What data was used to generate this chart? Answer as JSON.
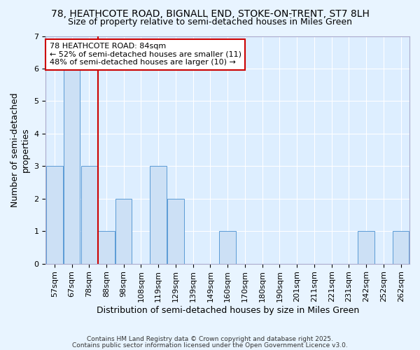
{
  "title1": "78, HEATHCOTE ROAD, BIGNALL END, STOKE-ON-TRENT, ST7 8LH",
  "title2": "Size of property relative to semi-detached houses in Miles Green",
  "xlabel": "Distribution of semi-detached houses by size in Miles Green",
  "ylabel": "Number of semi-detached\nproperties",
  "bins": [
    "57sqm",
    "67sqm",
    "78sqm",
    "88sqm",
    "98sqm",
    "108sqm",
    "119sqm",
    "129sqm",
    "139sqm",
    "149sqm",
    "160sqm",
    "170sqm",
    "180sqm",
    "190sqm",
    "201sqm",
    "211sqm",
    "221sqm",
    "231sqm",
    "242sqm",
    "252sqm",
    "262sqm"
  ],
  "values": [
    3,
    6,
    3,
    1,
    2,
    0,
    3,
    2,
    0,
    0,
    1,
    0,
    0,
    0,
    0,
    0,
    0,
    0,
    1,
    0,
    1
  ],
  "bar_color": "#cce0f5",
  "bar_edge_color": "#5b9bd5",
  "vline_index": 2.5,
  "vline_color": "#cc0000",
  "annotation_line1": "78 HEATHCOTE ROAD: 84sqm",
  "annotation_line2": "← 52% of semi-detached houses are smaller (11)",
  "annotation_line3": "48% of semi-detached houses are larger (10) →",
  "annotation_box_color": "#ffffff",
  "annotation_box_edge": "#cc0000",
  "background_color": "#e8f4ff",
  "plot_bg_color": "#ddeeff",
  "footer1": "Contains HM Land Registry data © Crown copyright and database right 2025.",
  "footer2": "Contains public sector information licensed under the Open Government Licence v3.0.",
  "ylim": [
    0,
    7
  ],
  "yticks": [
    0,
    1,
    2,
    3,
    4,
    5,
    6,
    7
  ],
  "title_fontsize": 10,
  "subtitle_fontsize": 9,
  "axis_label_fontsize": 9,
  "tick_fontsize": 8,
  "annotation_fontsize": 8
}
